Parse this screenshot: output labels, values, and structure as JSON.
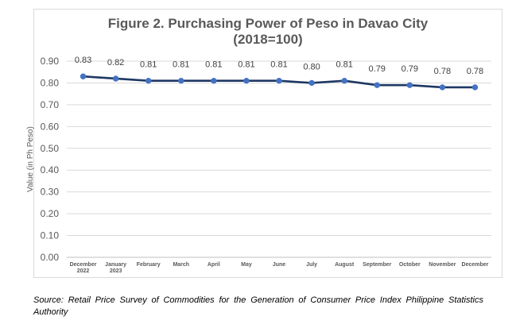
{
  "chart_data": {
    "type": "line",
    "title_lines": [
      "Figure 2. Purchasing Power of Peso in Davao City",
      "(2018=100)"
    ],
    "ylabel": "Value (in Ph Peso)",
    "xlabel": "",
    "ylim": [
      0,
      0.9
    ],
    "yticks": [
      "0.00",
      "0.10",
      "0.20",
      "0.30",
      "0.40",
      "0.50",
      "0.60",
      "0.70",
      "0.80",
      "0.90"
    ],
    "grid": true,
    "categories": [
      [
        "December",
        "2022"
      ],
      [
        "January",
        "2023"
      ],
      [
        "February"
      ],
      [
        "March"
      ],
      [
        "April"
      ],
      [
        "May"
      ],
      [
        "June"
      ],
      [
        "July"
      ],
      [
        "August"
      ],
      [
        "September"
      ],
      [
        "October"
      ],
      [
        "November"
      ],
      [
        "December"
      ]
    ],
    "series": [
      {
        "values": [
          0.83,
          0.82,
          0.81,
          0.81,
          0.81,
          0.81,
          0.81,
          0.8,
          0.81,
          0.79,
          0.79,
          0.78,
          0.78
        ],
        "labels": [
          "0.83",
          "0.82",
          "0.81",
          "0.81",
          "0.81",
          "0.81",
          "0.81",
          "0.80",
          "0.81",
          "0.79",
          "0.79",
          "0.78",
          "0.78"
        ]
      }
    ],
    "colors": {
      "line": "#1f3864",
      "marker": "#4472c4",
      "grid": "#d9d9d9",
      "text": "#595959"
    }
  },
  "source": "Source: Retail Price Survey of Commodities for the Generation of Consumer Price Index Philippine Statistics Authority"
}
